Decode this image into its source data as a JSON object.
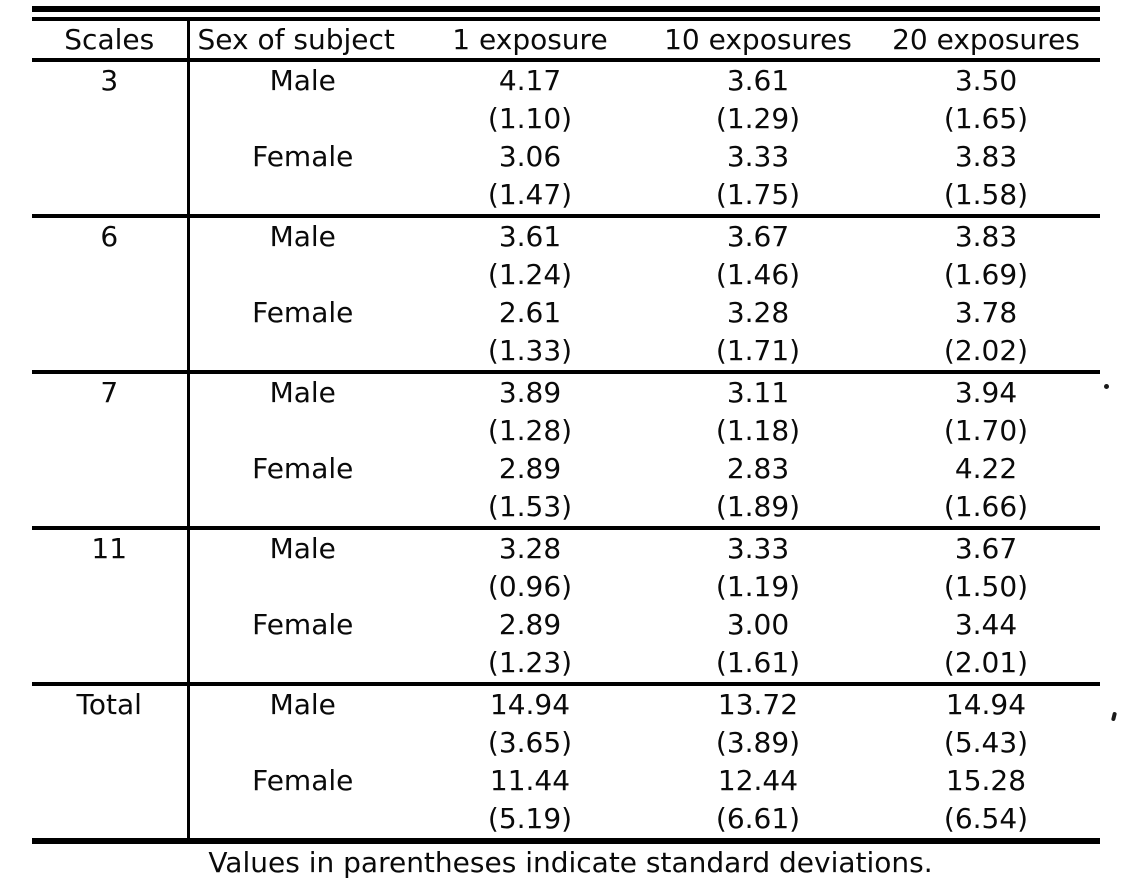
{
  "table": {
    "headers": [
      "Scales",
      "Sex of subject",
      "1 exposure",
      "10 exposures",
      "20 exposures"
    ],
    "groups": [
      {
        "scale": "3",
        "rows": [
          {
            "sex": "Male",
            "means": [
              "4.17",
              "3.61",
              "3.50"
            ],
            "sds": [
              "(1.10)",
              "(1.29)",
              "(1.65)"
            ]
          },
          {
            "sex": "Female",
            "means": [
              "3.06",
              "3.33",
              "3.83"
            ],
            "sds": [
              "(1.47)",
              "(1.75)",
              "(1.58)"
            ]
          }
        ]
      },
      {
        "scale": "6",
        "rows": [
          {
            "sex": "Male",
            "means": [
              "3.61",
              "3.67",
              "3.83"
            ],
            "sds": [
              "(1.24)",
              "(1.46)",
              "(1.69)"
            ]
          },
          {
            "sex": "Female",
            "means": [
              "2.61",
              "3.28",
              "3.78"
            ],
            "sds": [
              "(1.33)",
              "(1.71)",
              "(2.02)"
            ]
          }
        ]
      },
      {
        "scale": "7",
        "rows": [
          {
            "sex": "Male",
            "means": [
              "3.89",
              "3.11",
              "3.94"
            ],
            "sds": [
              "(1.28)",
              "(1.18)",
              "(1.70)"
            ]
          },
          {
            "sex": "Female",
            "means": [
              "2.89",
              "2.83",
              "4.22"
            ],
            "sds": [
              "(1.53)",
              "(1.89)",
              "(1.66)"
            ]
          }
        ]
      },
      {
        "scale": "11",
        "rows": [
          {
            "sex": "Male",
            "means": [
              "3.28",
              "3.33",
              "3.67"
            ],
            "sds": [
              "(0.96)",
              "(1.19)",
              "(1.50)"
            ]
          },
          {
            "sex": "Female",
            "means": [
              "2.89",
              "3.00",
              "3.44"
            ],
            "sds": [
              "(1.23)",
              "(1.61)",
              "(2.01)"
            ]
          }
        ]
      },
      {
        "scale": "Total",
        "rows": [
          {
            "sex": "Male",
            "means": [
              "14.94",
              "13.72",
              "14.94"
            ],
            "sds": [
              "(3.65)",
              "(3.89)",
              "(5.43)"
            ]
          },
          {
            "sex": "Female",
            "means": [
              "11.44",
              "12.44",
              "15.28"
            ],
            "sds": [
              "(5.19)",
              "(6.61)",
              "(6.54)"
            ]
          }
        ]
      }
    ],
    "footnote": "Values in parentheses indicate standard deviations."
  }
}
